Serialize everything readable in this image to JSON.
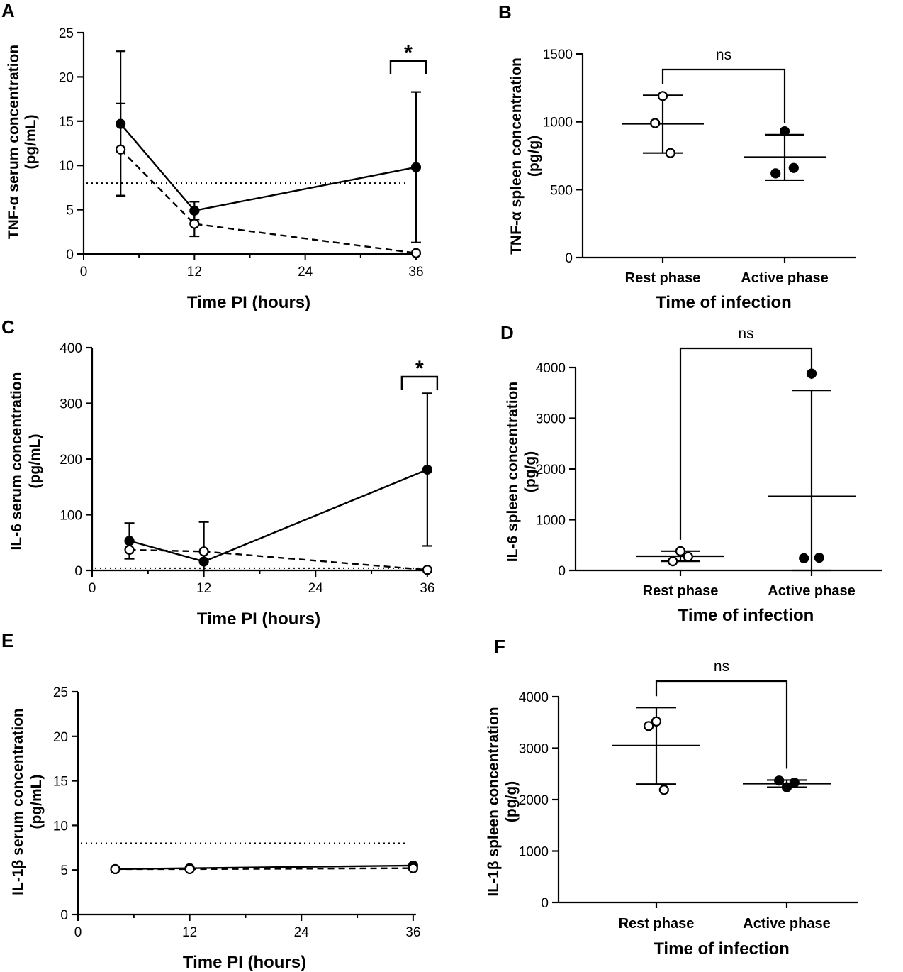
{
  "chart_data": [
    {
      "panel": "A",
      "type": "line",
      "xlabel": "Time PI (hours)",
      "ylabel_lines": [
        "TNF-α serum concentration",
        "(pg/mL)"
      ],
      "xticks": [
        0,
        12,
        24,
        36
      ],
      "yticks": [
        0,
        5,
        10,
        15,
        20,
        25
      ],
      "xlim": [
        0,
        37
      ],
      "ylim": [
        0,
        25
      ],
      "detection_limit": 8,
      "series": [
        {
          "name": "Active phase (filled)",
          "marker": "filled",
          "dash": false,
          "x": [
            4,
            12,
            36
          ],
          "y": [
            14.7,
            4.9,
            9.8
          ],
          "err": [
            8.2,
            1.0,
            8.5
          ]
        },
        {
          "name": "Rest phase (open)",
          "marker": "open",
          "dash": true,
          "x": [
            4,
            12,
            36
          ],
          "y": [
            11.8,
            3.4,
            0.1
          ],
          "err": [
            5.2,
            1.4,
            0
          ]
        }
      ],
      "significance": {
        "label": "*",
        "x": 36
      }
    },
    {
      "panel": "B",
      "type": "scatter",
      "xlabel": "Time of infection",
      "ylabel_lines": [
        "TNF-α spleen concentration",
        "(pg/g)"
      ],
      "categories": [
        "Rest phase",
        "Active phase"
      ],
      "yticks": [
        0,
        500,
        1000,
        1500
      ],
      "ylim": [
        0,
        1500
      ],
      "groups": [
        {
          "marker": "open",
          "points": [
            1190,
            990,
            770
          ],
          "mean": 985,
          "sd_low": 770,
          "sd_high": 1195
        },
        {
          "marker": "filled",
          "points": [
            930,
            620,
            660
          ],
          "mean": 740,
          "sd_low": 570,
          "sd_high": 905
        }
      ],
      "comparison": "ns"
    },
    {
      "panel": "C",
      "type": "line",
      "xlabel": "Time PI (hours)",
      "ylabel_lines": [
        "IL-6 serum concentration",
        "(pg/mL)"
      ],
      "xticks": [
        0,
        12,
        24,
        36
      ],
      "yticks": [
        0,
        100,
        200,
        300,
        400
      ],
      "xlim": [
        0,
        37
      ],
      "ylim": [
        0,
        400
      ],
      "detection_limit": 4,
      "series": [
        {
          "name": "Active phase (filled)",
          "marker": "filled",
          "dash": false,
          "x": [
            4,
            12,
            36
          ],
          "y": [
            53,
            16,
            181
          ],
          "err": [
            32,
            0,
            137
          ]
        },
        {
          "name": "Rest phase (open)",
          "marker": "open",
          "dash": true,
          "x": [
            4,
            12,
            36
          ],
          "y": [
            37,
            34,
            1
          ],
          "err": [
            16,
            53,
            0
          ]
        }
      ],
      "significance": {
        "label": "*",
        "x": 36
      }
    },
    {
      "panel": "D",
      "type": "scatter",
      "xlabel": "Time of infection",
      "ylabel_lines": [
        "IL-6 spleen concentration",
        "(pg/g)"
      ],
      "categories": [
        "Rest phase",
        "Active phase"
      ],
      "yticks": [
        0,
        1000,
        2000,
        3000,
        4000
      ],
      "ylim": [
        0,
        4000
      ],
      "groups": [
        {
          "marker": "open",
          "points": [
            380,
            180,
            270
          ],
          "mean": 280,
          "sd_low": 180,
          "sd_high": 380
        },
        {
          "marker": "filled",
          "points": [
            3880,
            240,
            250
          ],
          "mean": 1460,
          "sd_low": 0,
          "sd_high": 3550
        }
      ],
      "comparison": "ns"
    },
    {
      "panel": "E",
      "type": "line",
      "xlabel": "Time PI (hours)",
      "ylabel_lines": [
        "IL-1β serum concentration",
        "(pg/mL)"
      ],
      "xticks": [
        0,
        12,
        24,
        36
      ],
      "yticks": [
        0,
        5,
        10,
        15,
        20,
        25
      ],
      "xlim": [
        0,
        37
      ],
      "ylim": [
        0,
        25
      ],
      "detection_limit": 8,
      "series": [
        {
          "name": "Active phase (filled)",
          "marker": "filled",
          "dash": false,
          "x": [
            4,
            12,
            36
          ],
          "y": [
            5.1,
            5.2,
            5.5
          ],
          "err": [
            0,
            0,
            0
          ]
        },
        {
          "name": "Rest phase (open)",
          "marker": "open",
          "dash": true,
          "x": [
            4,
            12,
            36
          ],
          "y": [
            5.1,
            5.1,
            5.2
          ],
          "err": [
            0,
            0,
            0
          ]
        }
      ]
    },
    {
      "panel": "F",
      "type": "scatter",
      "xlabel": "Time of infection",
      "ylabel_lines": [
        "IL-1β spleen concentration",
        "(pg/g)"
      ],
      "categories": [
        "Rest phase",
        "Active phase"
      ],
      "yticks": [
        0,
        1000,
        2000,
        3000,
        4000
      ],
      "ylim": [
        0,
        4000
      ],
      "groups": [
        {
          "marker": "open",
          "points": [
            3520,
            3430,
            2190
          ],
          "mean": 3050,
          "sd_low": 2300,
          "sd_high": 3790
        },
        {
          "marker": "filled",
          "points": [
            2240,
            2370,
            2330
          ],
          "mean": 2310,
          "sd_low": 2240,
          "sd_high": 2380
        }
      ],
      "comparison": "ns"
    }
  ]
}
